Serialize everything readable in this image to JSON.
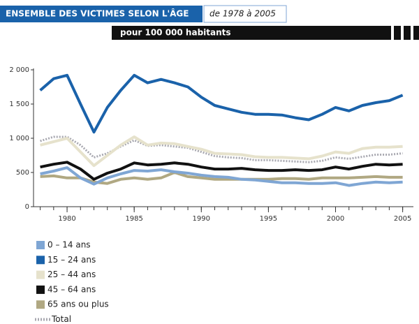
{
  "chart_data": {
    "type": "line",
    "title": "ENSEMBLE DES VICTIMES SELON L'ÂGE",
    "subtitle": "de 1978 à 2005",
    "unit_label": "pour 100 000 habitants",
    "x": [
      1978,
      1979,
      1980,
      1981,
      1982,
      1983,
      1984,
      1985,
      1986,
      1987,
      1988,
      1989,
      1990,
      1991,
      1992,
      1993,
      1994,
      1995,
      1996,
      1997,
      1998,
      1999,
      2000,
      2001,
      2002,
      2003,
      2004,
      2005
    ],
    "xlim": [
      1977.5,
      2005.8
    ],
    "xticks": [
      1980,
      1985,
      1990,
      1995,
      2000,
      2005
    ],
    "xminorticks": [
      1978,
      1979,
      1980,
      1981,
      1982,
      1983,
      1984,
      1985,
      1986,
      1987,
      1988,
      1989,
      1990,
      1991,
      1992,
      1993,
      1994,
      1995,
      1996,
      1997,
      1998,
      1999,
      2000,
      2001,
      2002,
      2003,
      2004,
      2005
    ],
    "ylim": [
      0,
      2000
    ],
    "yticks": [
      {
        "value": 0,
        "label": "0"
      },
      {
        "value": 500,
        "label": "500"
      },
      {
        "value": 1000,
        "label": "1 000"
      },
      {
        "value": 1500,
        "label": "1 500"
      },
      {
        "value": 2000,
        "label": "2 000"
      }
    ],
    "series": [
      {
        "name": "0 – 14 ans",
        "color": "#7fa6d4",
        "style": "solid",
        "values": [
          480,
          520,
          570,
          420,
          330,
          420,
          480,
          530,
          520,
          540,
          510,
          490,
          460,
          440,
          430,
          400,
          390,
          370,
          350,
          350,
          340,
          340,
          350,
          310,
          340,
          360,
          350,
          360
        ]
      },
      {
        "name": "15 – 24 ans",
        "color": "#1a62aa",
        "style": "solid",
        "values": [
          1700,
          1870,
          1920,
          1500,
          1090,
          1450,
          1700,
          1920,
          1810,
          1860,
          1810,
          1750,
          1600,
          1480,
          1430,
          1380,
          1350,
          1350,
          1340,
          1300,
          1270,
          1350,
          1450,
          1400,
          1480,
          1520,
          1550,
          1630
        ]
      },
      {
        "name": "25 – 44 ans",
        "color": "#e6e2cc",
        "style": "solid",
        "values": [
          900,
          950,
          1000,
          800,
          600,
          750,
          900,
          1020,
          900,
          930,
          920,
          880,
          840,
          780,
          770,
          760,
          730,
          720,
          720,
          710,
          700,
          740,
          800,
          780,
          850,
          870,
          870,
          880
        ]
      },
      {
        "name": "45 – 64 ans",
        "color": "#111111",
        "style": "solid",
        "values": [
          580,
          620,
          650,
          550,
          400,
          490,
          550,
          640,
          610,
          620,
          640,
          620,
          580,
          550,
          550,
          560,
          540,
          530,
          530,
          540,
          530,
          540,
          580,
          550,
          590,
          620,
          610,
          620
        ]
      },
      {
        "name": "65 ans ou plus",
        "color": "#b0a882",
        "style": "solid",
        "values": [
          440,
          450,
          420,
          420,
          360,
          340,
          400,
          420,
          400,
          420,
          500,
          440,
          420,
          400,
          400,
          400,
          400,
          400,
          410,
          410,
          400,
          420,
          420,
          420,
          430,
          440,
          430,
          430
        ]
      },
      {
        "name": "Total",
        "color": "#a8a8b0",
        "style": "dotted",
        "values": [
          960,
          1020,
          1020,
          900,
          720,
          780,
          880,
          970,
          890,
          900,
          880,
          860,
          800,
          740,
          720,
          710,
          680,
          680,
          670,
          660,
          650,
          670,
          720,
          700,
          730,
          760,
          760,
          780
        ]
      }
    ]
  }
}
